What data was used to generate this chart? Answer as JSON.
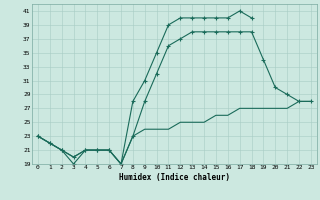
{
  "xlabel": "Humidex (Indice chaleur)",
  "bg_color": "#cce8e0",
  "line_color": "#1a6b5a",
  "xlim": [
    -0.5,
    23.5
  ],
  "ylim": [
    19,
    42
  ],
  "yticks": [
    19,
    21,
    23,
    25,
    27,
    29,
    31,
    33,
    35,
    37,
    39,
    41
  ],
  "xticks": [
    0,
    1,
    2,
    3,
    4,
    5,
    6,
    7,
    8,
    9,
    10,
    11,
    12,
    13,
    14,
    15,
    16,
    17,
    18,
    19,
    20,
    21,
    22,
    23
  ],
  "line1_x": [
    0,
    1,
    2,
    3,
    4,
    5,
    6,
    7,
    8,
    9,
    10,
    11,
    12,
    13,
    14,
    15,
    16,
    17,
    18
  ],
  "line1_y": [
    23,
    22,
    21,
    19,
    21,
    21,
    21,
    19,
    28,
    31,
    35,
    39,
    40,
    40,
    40,
    40,
    40,
    41,
    40
  ],
  "line2_x": [
    0,
    1,
    2,
    3,
    4,
    5,
    6,
    7,
    8,
    9,
    10,
    11,
    12,
    13,
    14,
    15,
    16,
    17,
    18,
    19,
    20,
    21,
    22,
    23
  ],
  "line2_y": [
    23,
    22,
    21,
    20,
    21,
    21,
    21,
    19,
    23,
    28,
    32,
    36,
    37,
    38,
    38,
    38,
    38,
    38,
    38,
    34,
    30,
    29,
    28,
    28
  ],
  "line3_x": [
    0,
    1,
    2,
    3,
    4,
    5,
    6,
    7,
    8,
    9,
    10,
    11,
    12,
    13,
    14,
    15,
    16,
    17,
    18,
    19,
    20,
    21,
    22,
    23
  ],
  "line3_y": [
    23,
    22,
    21,
    20,
    21,
    21,
    21,
    19,
    23,
    24,
    24,
    24,
    25,
    25,
    25,
    26,
    26,
    27,
    27,
    27,
    27,
    27,
    28,
    28
  ]
}
